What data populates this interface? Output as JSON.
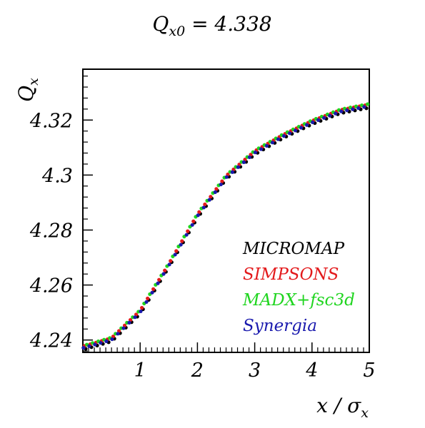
{
  "chart_data": {
    "type": "scatter",
    "title_main": "Q",
    "title_sub": "x0",
    "title_rest": " = 4.338",
    "ylabel_main": "Q",
    "ylabel_sub": "x",
    "xlabel_main": "x / σ",
    "xlabel_sub": "x",
    "xlim": [
      0,
      5
    ],
    "ylim": [
      4.2355,
      4.3385
    ],
    "x_ticks": [
      1,
      2,
      3,
      4,
      5
    ],
    "x_tick_labels": [
      "1",
      "2",
      "3",
      "4",
      "5"
    ],
    "y_ticks": [
      4.24,
      4.26,
      4.28,
      4.3,
      4.32
    ],
    "y_tick_labels": [
      "4.24",
      "4.26",
      "4.28",
      "4.3",
      "4.32"
    ],
    "grid": false,
    "legend_position": "bottom-right",
    "series": [
      {
        "name": "MICROMAP",
        "color": "#000000",
        "x_start": 0.05,
        "x_step": 0.1,
        "y_offset": 0.0,
        "curve": [
          [
            0.0,
            4.2365
          ],
          [
            0.5,
            4.2395
          ],
          [
            1.0,
            4.2495
          ],
          [
            1.5,
            4.2665
          ],
          [
            2.0,
            4.2845
          ],
          [
            2.5,
            4.2985
          ],
          [
            3.0,
            4.3075
          ],
          [
            3.5,
            4.3135
          ],
          [
            4.0,
            4.3185
          ],
          [
            4.5,
            4.3225
          ],
          [
            5.0,
            4.3245
          ]
        ]
      },
      {
        "name": "SIMPSONS",
        "color": "#e31a1c",
        "x_start": 0.03,
        "x_step": 0.1,
        "y_offset": 0.0012,
        "curve": [
          [
            0.0,
            4.2365
          ],
          [
            0.5,
            4.2395
          ],
          [
            1.0,
            4.2495
          ],
          [
            1.5,
            4.2665
          ],
          [
            2.0,
            4.2845
          ],
          [
            2.5,
            4.2985
          ],
          [
            3.0,
            4.3075
          ],
          [
            3.5,
            4.3135
          ],
          [
            4.0,
            4.3185
          ],
          [
            4.5,
            4.3225
          ],
          [
            5.0,
            4.3245
          ]
        ]
      },
      {
        "name": "MADX+fsc3d",
        "color": "#1fd51f",
        "x_start": 0.07,
        "x_step": 0.1,
        "y_offset": 0.0014,
        "curve": [
          [
            0.0,
            4.2365
          ],
          [
            0.5,
            4.2395
          ],
          [
            1.0,
            4.2495
          ],
          [
            1.5,
            4.2665
          ],
          [
            2.0,
            4.2845
          ],
          [
            2.5,
            4.2985
          ],
          [
            3.0,
            4.3075
          ],
          [
            3.5,
            4.3135
          ],
          [
            4.0,
            4.3185
          ],
          [
            4.5,
            4.3225
          ],
          [
            5.0,
            4.3245
          ]
        ]
      },
      {
        "name": "Synergia",
        "color": "#1a1aae",
        "x_start": 0.01,
        "x_step": 0.1,
        "y_offset": 0.0006,
        "curve": [
          [
            0.0,
            4.2365
          ],
          [
            0.5,
            4.2395
          ],
          [
            1.0,
            4.2495
          ],
          [
            1.5,
            4.2665
          ],
          [
            2.0,
            4.2845
          ],
          [
            2.5,
            4.2985
          ],
          [
            3.0,
            4.3075
          ],
          [
            3.5,
            4.3135
          ],
          [
            4.0,
            4.3185
          ],
          [
            4.5,
            4.3225
          ],
          [
            5.0,
            4.3245
          ]
        ]
      }
    ]
  }
}
